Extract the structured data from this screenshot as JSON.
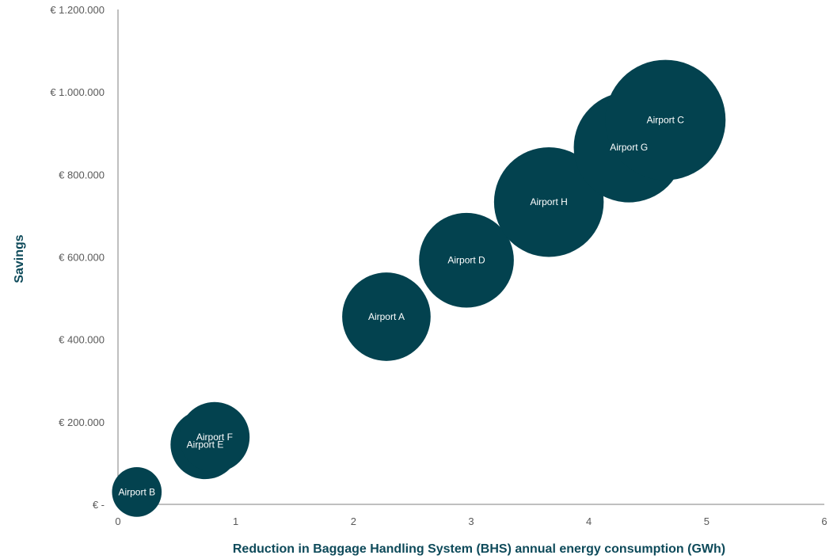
{
  "chart_data": {
    "type": "scatter",
    "subtype": "bubble",
    "title": "",
    "xlabel": "Reduction in Baggage Handling System (BHS) annual energy consumption (GWh)",
    "ylabel": "Savings",
    "xlim": [
      0,
      6
    ],
    "ylim": [
      0,
      1200000
    ],
    "x_ticks": [
      "0",
      "1",
      "2",
      "3",
      "4",
      "5",
      "6"
    ],
    "y_ticks": [
      "€ -",
      "€ 200.000",
      "€ 400.000",
      "€ 600.000",
      "€ 800.000",
      "€ 1.000.000",
      "€ 1.200.000"
    ],
    "grid": false,
    "legend": "none",
    "colors": {
      "bubble": "#03424f",
      "label_light": "#ffffff",
      "label_faded": "#c8c8c8",
      "axis_title": "#0e4a5a",
      "tick_text": "#595959",
      "axis_line": "#7f7f7f"
    },
    "points": [
      {
        "label": "Airport B",
        "x": 0.16,
        "y": 30000,
        "size": 0.17
      },
      {
        "label": "Airport E",
        "x": 0.74,
        "y": 145000,
        "size": 0.33
      },
      {
        "label": "Airport F",
        "x": 0.82,
        "y": 163000,
        "size": 0.34
      },
      {
        "label": "Airport A",
        "x": 2.28,
        "y": 455000,
        "size": 0.54
      },
      {
        "label": "Airport D",
        "x": 2.96,
        "y": 592000,
        "size": 0.62
      },
      {
        "label": "Airport H",
        "x": 3.66,
        "y": 733000,
        "size": 0.83
      },
      {
        "label": "Airport G",
        "x": 4.34,
        "y": 866000,
        "size": 0.84
      },
      {
        "label": "Airport C",
        "x": 4.65,
        "y": 932000,
        "size": 1.0
      }
    ]
  }
}
